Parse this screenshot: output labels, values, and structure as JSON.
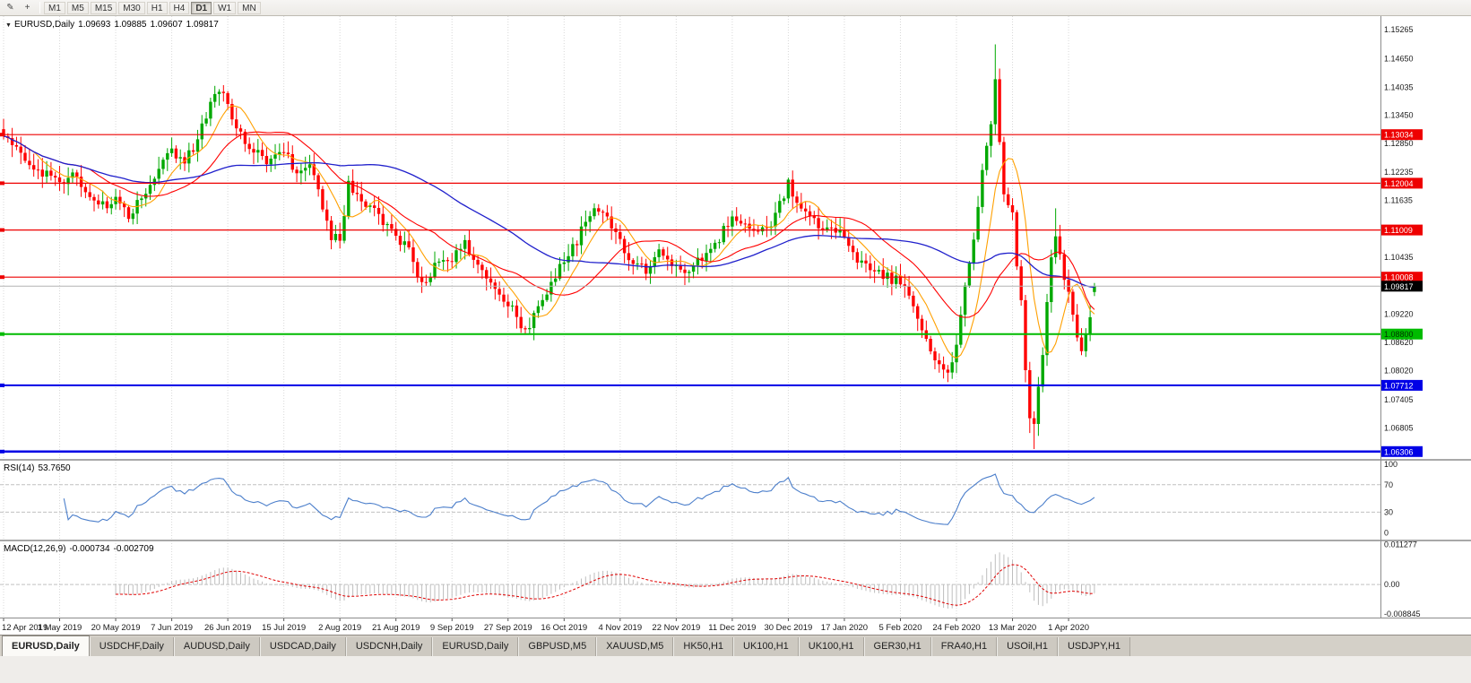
{
  "toolbar": {
    "icons": [
      {
        "name": "edit-icon",
        "glyph": "✎"
      },
      {
        "name": "crosshair-icon",
        "glyph": "+"
      }
    ],
    "timeframes": [
      "M1",
      "M5",
      "M15",
      "M30",
      "H1",
      "H4",
      "D1",
      "W1",
      "MN"
    ],
    "active_timeframe": "D1"
  },
  "chart_header": {
    "symbol": "EURUSD,Daily",
    "open": "1.09693",
    "high": "1.09885",
    "low": "1.09607",
    "close": "1.09817"
  },
  "rsi_panel": {
    "label": "RSI(14)",
    "value": "53.7650",
    "axis_labels": [
      "100",
      "70",
      "30",
      "0"
    ]
  },
  "macd_panel": {
    "label": "MACD(12,26,9)",
    "value_main": "-0.000734",
    "value_signal": "-0.002709",
    "axis_labels": [
      "0.011277",
      "0.00",
      "-0.008845"
    ]
  },
  "price_axis": {
    "labels": [
      "1.15265",
      "1.14650",
      "1.14035",
      "1.13450",
      "1.12850",
      "1.12235",
      "1.11635",
      "1.10435",
      "1.09220",
      "1.08620",
      "1.08020",
      "1.07405",
      "1.06805"
    ],
    "current_tag": {
      "label": "1.09817",
      "price": 1.09817,
      "bg": "#000000",
      "fg": "#FFFFFF"
    }
  },
  "time_axis": {
    "tick_step": 13,
    "labels": [
      "12 Apr 2019",
      "1 May 2019",
      "20 May 2019",
      "7 Jun 2019",
      "26 Jun 2019",
      "15 Jul 2019",
      "2 Aug 2019",
      "21 Aug 2019",
      "9 Sep 2019",
      "27 Sep 2019",
      "16 Oct 2019",
      "4 Nov 2019",
      "22 Nov 2019",
      "11 Dec 2019",
      "30 Dec 2019",
      "17 Jan 2020",
      "5 Feb 2020",
      "24 Feb 2020",
      "13 Mar 2020",
      "1 Apr 2020"
    ]
  },
  "tabs": {
    "active_index": 0,
    "items": [
      "EURUSD,Daily",
      "USDCHF,Daily",
      "AUDUSD,Daily",
      "USDCAD,Daily",
      "USDCNH,Daily",
      "EURUSD,Daily",
      "GBPUSD,M5",
      "XAUUSD,M5",
      "HK50,H1",
      "UK100,H1",
      "UK100,H1",
      "GER30,H1",
      "FRA40,H1",
      "USOil,H1",
      "USDJPY,H1"
    ],
    "active": "EURUSD,Daily"
  },
  "chart_data": {
    "type": "candlestick",
    "symbol": "EURUSD",
    "timeframe": "Daily",
    "title": "EURUSD,Daily 1.09693 1.09885 1.09607 1.09817",
    "ohlc_current": {
      "open": 1.09693,
      "high": 1.09885,
      "low": 1.09607,
      "close": 1.09817
    },
    "num_candles": 254,
    "price_range": {
      "min": 1.0615,
      "max": 1.1555
    },
    "colors": {
      "up": "#00A800",
      "down": "#FF0000",
      "background": "#FFFFFF",
      "grid": "#D8D8D8",
      "current_price_line": "#B4B4B4",
      "rsi_line": "#4C7FCB",
      "level_dash": "#C0C0C0",
      "macd_histogram": "#BEBEBE",
      "macd_signal": "#E00000"
    },
    "close_anchors": [
      [
        0,
        1.13
      ],
      [
        3,
        1.1272
      ],
      [
        6,
        1.1246
      ],
      [
        9,
        1.122
      ],
      [
        13,
        1.12
      ],
      [
        16,
        1.1226
      ],
      [
        20,
        1.1182
      ],
      [
        23,
        1.1156
      ],
      [
        26,
        1.1162
      ],
      [
        29,
        1.1132
      ],
      [
        32,
        1.1172
      ],
      [
        35,
        1.1212
      ],
      [
        39,
        1.1268
      ],
      [
        42,
        1.1242
      ],
      [
        45,
        1.1292
      ],
      [
        48,
        1.1376
      ],
      [
        50,
        1.1396
      ],
      [
        52,
        1.1366
      ],
      [
        55,
        1.1302
      ],
      [
        58,
        1.1272
      ],
      [
        61,
        1.1242
      ],
      [
        65,
        1.1272
      ],
      [
        68,
        1.1222
      ],
      [
        71,
        1.1248
      ],
      [
        74,
        1.1152
      ],
      [
        76,
        1.1076
      ],
      [
        78,
        1.1086
      ],
      [
        80,
        1.1196
      ],
      [
        83,
        1.1172
      ],
      [
        86,
        1.1142
      ],
      [
        89,
        1.1102
      ],
      [
        91,
        1.1092
      ],
      [
        94,
        1.1052
      ],
      [
        97,
        1.0992
      ],
      [
        100,
        1.1022
      ],
      [
        104,
        1.1042
      ],
      [
        107,
        1.1068
      ],
      [
        110,
        1.1032
      ],
      [
        113,
        1.0992
      ],
      [
        117,
        1.0942
      ],
      [
        120,
        1.0904
      ],
      [
        122,
        1.0892
      ],
      [
        125,
        1.0958
      ],
      [
        128,
        1.1002
      ],
      [
        130,
        1.1042
      ],
      [
        133,
        1.1078
      ],
      [
        136,
        1.1138
      ],
      [
        139,
        1.1148
      ],
      [
        143,
        1.1072
      ],
      [
        146,
        1.1032
      ],
      [
        149,
        1.1012
      ],
      [
        152,
        1.1058
      ],
      [
        156,
        1.1022
      ],
      [
        159,
        1.1012
      ],
      [
        162,
        1.1042
      ],
      [
        165,
        1.1068
      ],
      [
        169,
        1.1128
      ],
      [
        172,
        1.111
      ],
      [
        175,
        1.1092
      ],
      [
        178,
        1.1118
      ],
      [
        182,
        1.1198
      ],
      [
        184,
        1.1162
      ],
      [
        187,
        1.1132
      ],
      [
        190,
        1.1102
      ],
      [
        193,
        1.1092
      ],
      [
        195,
        1.109
      ],
      [
        198,
        1.1042
      ],
      [
        201,
        1.1012
      ],
      [
        204,
        1.1002
      ],
      [
        208,
        1.099
      ],
      [
        212,
        1.092
      ],
      [
        215,
        1.085
      ],
      [
        217,
        1.082
      ],
      [
        219,
        1.0792
      ],
      [
        221,
        1.0856
      ],
      [
        223,
        1.099
      ],
      [
        225,
        1.109
      ],
      [
        227,
        1.123
      ],
      [
        229,
        1.133
      ],
      [
        230,
        1.142
      ],
      [
        231,
        1.1285
      ],
      [
        232,
        1.118
      ],
      [
        234,
        1.114
      ],
      [
        235,
        1.102
      ],
      [
        236,
        1.096
      ],
      [
        237,
        1.081
      ],
      [
        238,
        1.0702
      ],
      [
        239,
        1.069
      ],
      [
        240,
        1.077
      ],
      [
        241,
        1.083
      ],
      [
        242,
        1.096
      ],
      [
        243,
        1.105
      ],
      [
        244,
        1.109
      ],
      [
        245,
        1.104
      ],
      [
        246,
        1.1
      ],
      [
        247,
        1.0965
      ],
      [
        249,
        1.088
      ],
      [
        250,
        1.0855
      ],
      [
        251,
        1.087
      ],
      [
        252,
        1.092
      ],
      [
        253,
        1.0982
      ]
    ],
    "extreme_overrides": {
      "50": {
        "high": 1.14
      },
      "122": {
        "low": 1.0879
      },
      "219": {
        "low": 1.0778
      },
      "230": {
        "high": 1.1495
      },
      "238": {
        "low": 1.067
      },
      "239": {
        "low": 1.0636
      },
      "244": {
        "high": 1.1147
      },
      "253": {
        "high": 1.09885,
        "low": 1.09607
      }
    },
    "moving_averages": [
      {
        "period": 8,
        "color": "#FFA000",
        "width": 1.1
      },
      {
        "period": 21,
        "color": "#FF0000",
        "width": 1.1
      },
      {
        "period": 55,
        "color": "#2020CC",
        "width": 1.3
      }
    ],
    "horizontal_lines": [
      {
        "price": 1.13034,
        "label": "1.13034",
        "color": "#EE0000",
        "width": 1.2,
        "fg": "#FFFFFF"
      },
      {
        "price": 1.12004,
        "label": "1.12004",
        "color": "#EE0000",
        "width": 1.2,
        "fg": "#FFFFFF"
      },
      {
        "price": 1.11009,
        "label": "1.11009",
        "color": "#EE0000",
        "width": 1.2,
        "fg": "#FFFFFF"
      },
      {
        "price": 1.10008,
        "label": "1.10008",
        "color": "#EE0000",
        "width": 1.2,
        "fg": "#FFFFFF"
      },
      {
        "price": 1.088,
        "label": "1.08800",
        "color": "#00BB00",
        "width": 2,
        "fg": "#003300"
      },
      {
        "price": 1.07712,
        "label": "1.07712",
        "color": "#0000E6",
        "width": 2,
        "fg": "#FFFFFF"
      },
      {
        "price": 1.06306,
        "label": "1.06306",
        "color": "#0000E6",
        "width": 2.5,
        "fg": "#FFFFFF"
      }
    ],
    "indicators": {
      "rsi": {
        "period": 14,
        "current": 53.765,
        "levels": [
          70,
          30
        ],
        "scale": {
          "min": -10,
          "max": 105
        }
      },
      "macd": {
        "fast": 12,
        "slow": 26,
        "signal": 9,
        "current_main": -0.000734,
        "current_signal": -0.002709,
        "scale": {
          "min": -0.0096,
          "max": 0.0122
        }
      }
    }
  }
}
